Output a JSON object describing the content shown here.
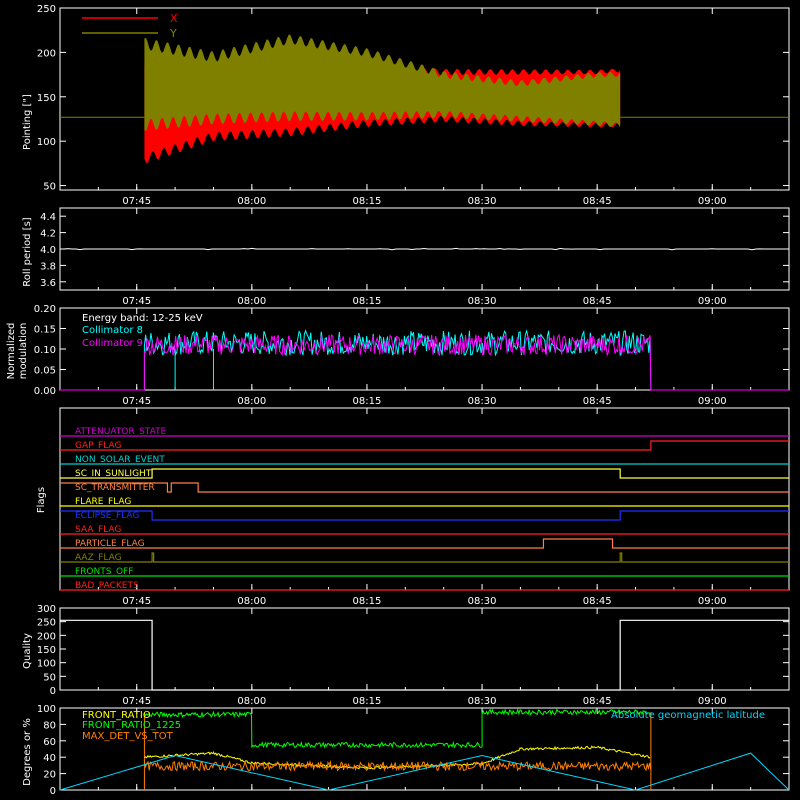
{
  "time_ticks": [
    "07:45",
    "08:00",
    "08:15",
    "08:30",
    "08:45",
    "09:00"
  ],
  "panels": [
    {
      "id": "pointing",
      "ylabel": "Pointing [\"]",
      "yticks": [
        50,
        100,
        150,
        200,
        250
      ],
      "ylim": [
        45,
        250
      ],
      "legend": [
        {
          "name": "X",
          "color": "#ff0000"
        },
        {
          "name": "Y",
          "color": "#808000"
        }
      ]
    },
    {
      "id": "roll",
      "ylabel": "Roll period [s]",
      "yticks": [
        "3.6",
        "3.8",
        "4.0",
        "4.2",
        "4.4"
      ],
      "ylim": [
        3.5,
        4.5
      ]
    },
    {
      "id": "modulation",
      "ylabel_line1": "Normalized",
      "ylabel_line2": "modulation",
      "yticks": [
        "0.00",
        "0.05",
        "0.10",
        "0.15",
        "0.20"
      ],
      "ylim": [
        0,
        0.2
      ],
      "annotation": "Energy band: 12-25 keV",
      "legend": [
        {
          "name": "Collimator 8",
          "color": "#00ffff"
        },
        {
          "name": "Collimator 9",
          "color": "#ff00ff"
        }
      ]
    },
    {
      "id": "flags",
      "ylabel": "Flags",
      "flags": [
        {
          "name": "ATTENUATOR_STATE",
          "color": "#cc00cc"
        },
        {
          "name": "GAP_FLAG",
          "color": "#ff2020"
        },
        {
          "name": "NON_SOLAR_EVENT",
          "color": "#00d0d0"
        },
        {
          "name": "SC_IN_SUNLIGHT",
          "color": "#ffff40"
        },
        {
          "name": "SC_TRANSMITTER",
          "color": "#ff8040"
        },
        {
          "name": "FLARE_FLAG",
          "color": "#ffff00"
        },
        {
          "name": "ECLIPSE_FLAG",
          "color": "#2030ff"
        },
        {
          "name": "SAA_FLAG",
          "color": "#ff2020"
        },
        {
          "name": "PARTICLE_FLAG",
          "color": "#ff8040"
        },
        {
          "name": "AAZ_FLAG",
          "color": "#808000"
        },
        {
          "name": "FRONTS_OFF",
          "color": "#00e000"
        },
        {
          "name": "BAD_PACKETS",
          "color": "#ff2020"
        }
      ]
    },
    {
      "id": "quality",
      "ylabel": "Quality",
      "yticks": [
        0,
        50,
        100,
        150,
        200,
        250,
        300
      ],
      "ylim": [
        0,
        300
      ]
    },
    {
      "id": "ratios",
      "ylabel": "Degrees or %",
      "yticks": [
        0,
        20,
        40,
        60,
        80,
        100
      ],
      "ylim": [
        0,
        100
      ],
      "legend": [
        {
          "name": "FRONT_RATIO",
          "color": "#ffff00"
        },
        {
          "name": "FRONT_RATIO_1225",
          "color": "#00ff00"
        },
        {
          "name": "MAX_DET_VS_TOT",
          "color": "#ff8000"
        }
      ],
      "annotation": "Absolute geomagnetic latitude",
      "annotation_color": "#00d8ff"
    }
  ],
  "chart_data": [
    {
      "type": "area",
      "ylabel": "Pointing [\"]",
      "x_range": [
        "07:35",
        "09:10"
      ],
      "ylim": [
        45,
        250
      ],
      "data_span": [
        "07:46",
        "08:48"
      ],
      "baseline": 127,
      "series": [
        {
          "name": "X",
          "color": "#ff0000",
          "x": [
            "07:46",
            "07:55",
            "08:05",
            "08:15",
            "08:25",
            "08:35",
            "08:45",
            "08:48"
          ],
          "ymin": [
            80,
            105,
            110,
            120,
            125,
            120,
            118,
            118
          ],
          "ymax": [
            185,
            175,
            178,
            182,
            178,
            178,
            178,
            180
          ]
        },
        {
          "name": "Y",
          "color": "#808000",
          "x": [
            "07:46",
            "07:55",
            "08:05",
            "08:15",
            "08:25",
            "08:35",
            "08:45",
            "08:48"
          ],
          "ymin": [
            118,
            125,
            128,
            128,
            130,
            125,
            120,
            118
          ],
          "ymax": [
            210,
            195,
            215,
            200,
            175,
            165,
            175,
            175
          ]
        }
      ]
    },
    {
      "type": "line",
      "ylabel": "Roll period [s]",
      "x_range": [
        "07:35",
        "09:10"
      ],
      "ylim": [
        3.5,
        4.5
      ],
      "series": [
        {
          "name": "",
          "values_constant": 4.0
        }
      ]
    },
    {
      "type": "line",
      "ylabel": "Normalized modulation",
      "x_range": [
        "07:35",
        "09:10"
      ],
      "ylim": [
        0,
        0.2
      ],
      "data_span": [
        "07:46",
        "08:52"
      ],
      "series": [
        {
          "name": "Collimator 8",
          "color": "#00ffff",
          "mean": 0.115,
          "spread": 0.03
        },
        {
          "name": "Collimator 9",
          "color": "#ff00ff",
          "mean": 0.11,
          "spread": 0.025
        }
      ]
    },
    {
      "type": "line",
      "ylabel": "Flags",
      "x_range": [
        "07:35",
        "09:10"
      ],
      "steps": [
        {
          "name": "ATTENUATOR_STATE",
          "changes": []
        },
        {
          "name": "GAP_FLAG",
          "changes": [
            {
              "t": "08:52",
              "to": 1
            }
          ]
        },
        {
          "name": "NON_SOLAR_EVENT",
          "changes": []
        },
        {
          "name": "SC_IN_SUNLIGHT",
          "changes": [
            {
              "t": "07:47",
              "to": 1
            },
            {
              "t": "08:48",
              "to": 0
            }
          ]
        },
        {
          "name": "SC_TRANSMITTER",
          "changes": [
            {
              "t": "07:49",
              "to": 0
            },
            {
              "t": "07:49.5",
              "to": 1
            },
            {
              "t": "07:53",
              "to": 0
            }
          ]
        },
        {
          "name": "FLARE_FLAG",
          "changes": []
        },
        {
          "name": "ECLIPSE_FLAG",
          "changes": [
            {
              "t": "07:47",
              "to": 0
            },
            {
              "t": "08:48",
              "to": 1
            }
          ]
        },
        {
          "name": "SAA_FLAG",
          "changes": []
        },
        {
          "name": "PARTICLE_FLAG",
          "changes": [
            {
              "t": "08:38",
              "to": 1
            },
            {
              "t": "08:47",
              "to": 0
            }
          ]
        },
        {
          "name": "AAZ_FLAG",
          "changes": [
            {
              "t": "07:47",
              "to": 1
            },
            {
              "t": "07:47.2",
              "to": 0
            },
            {
              "t": "08:48",
              "to": 1
            },
            {
              "t": "08:48.2",
              "to": 0
            }
          ]
        },
        {
          "name": "FRONTS_OFF",
          "changes": []
        },
        {
          "name": "BAD_PACKETS",
          "changes": []
        }
      ]
    },
    {
      "type": "line",
      "ylabel": "Quality",
      "x_range": [
        "07:35",
        "09:10"
      ],
      "ylim": [
        0,
        300
      ],
      "x": [
        "07:35",
        "07:47",
        "07:47",
        "08:48",
        "08:48",
        "09:10"
      ],
      "values": [
        255,
        255,
        0,
        0,
        255,
        255
      ]
    },
    {
      "type": "line",
      "ylabel": "Degrees or %",
      "x_range": [
        "07:35",
        "09:10"
      ],
      "ylim": [
        0,
        100
      ],
      "series": [
        {
          "name": "FRONT_RATIO",
          "color": "#ffff00",
          "x": [
            "07:46",
            "07:55",
            "08:00",
            "08:15",
            "08:30",
            "08:35",
            "08:45",
            "08:52"
          ],
          "values": [
            40,
            45,
            33,
            27,
            32,
            50,
            52,
            40
          ]
        },
        {
          "name": "FRONT_RATIO_1225",
          "color": "#00ff00",
          "x": [
            "07:46",
            "08:00",
            "08:00",
            "08:30",
            "08:30",
            "08:52"
          ],
          "values": [
            92,
            92,
            55,
            55,
            95,
            95
          ]
        },
        {
          "name": "MAX_DET_VS_TOT",
          "color": "#ff8000",
          "mean": 29,
          "spread": 3
        },
        {
          "name": "Absolute geomagnetic latitude",
          "color": "#00d8ff",
          "x": [
            "07:35",
            "07:50",
            "08:10",
            "08:30",
            "08:50",
            "09:05",
            "09:10"
          ],
          "values": [
            0,
            42,
            0,
            42,
            0,
            45,
            0
          ]
        }
      ]
    }
  ]
}
